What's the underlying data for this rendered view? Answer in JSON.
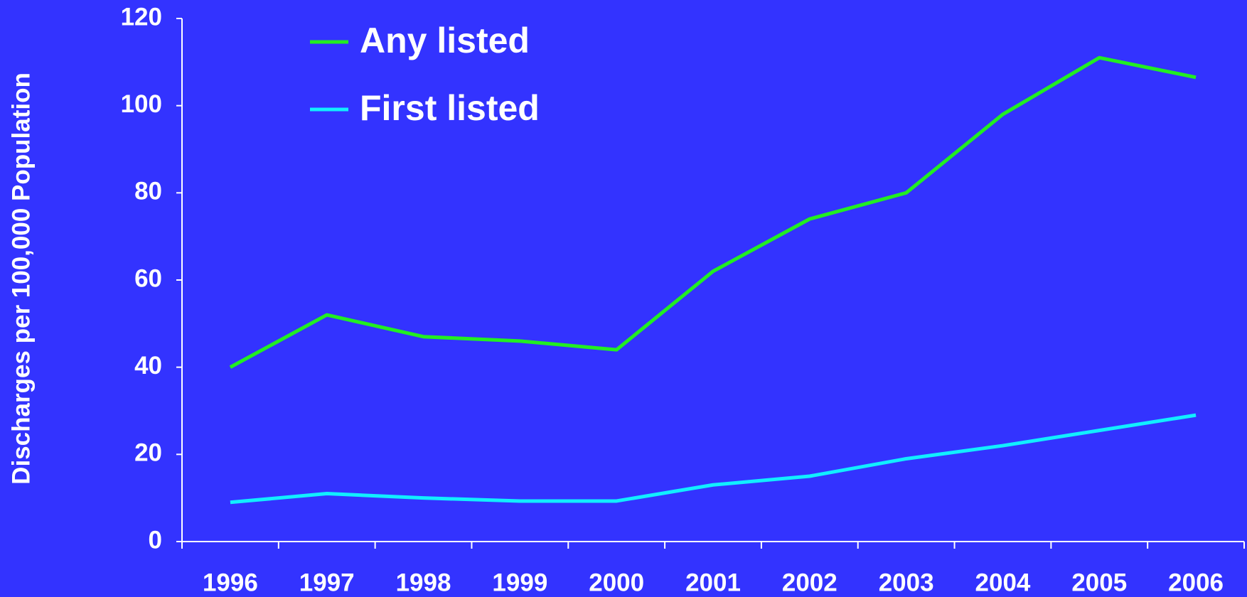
{
  "chart_data": {
    "type": "line",
    "y_label": "Discharges per 100,000 Population",
    "categories": [
      "1996",
      "1997",
      "1998",
      "1999",
      "2000",
      "2001",
      "2002",
      "2003",
      "2004",
      "2005",
      "2006"
    ],
    "series": [
      {
        "name": "Any listed",
        "color": "#22ee22",
        "values": [
          40,
          52,
          47,
          46,
          44,
          62,
          74,
          80,
          98,
          111,
          106.5
        ]
      },
      {
        "name": "First listed",
        "color": "#11eeff",
        "values": [
          9,
          11,
          10,
          9.3,
          9.3,
          13,
          15,
          19,
          22,
          25.5,
          29
        ]
      }
    ],
    "ylim": [
      0,
      120
    ],
    "yticks": [
      0,
      20,
      40,
      60,
      80,
      100,
      120
    ],
    "legend": "top-left",
    "grid": false
  }
}
